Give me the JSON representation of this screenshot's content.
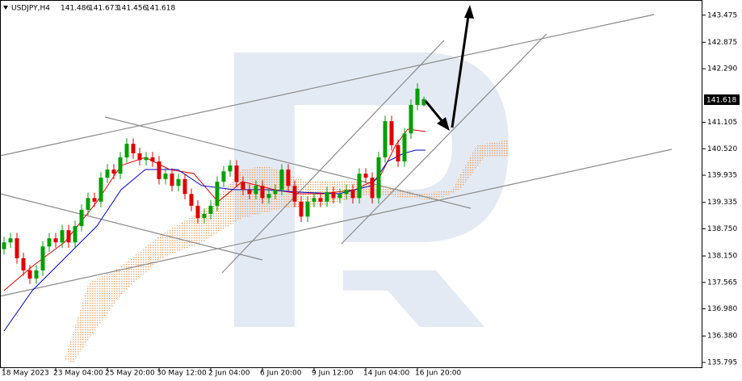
{
  "chart_data": {
    "type": "candlestick",
    "title": "USDJPY,H4",
    "ohlc": [
      141.486,
      141.673,
      141.456,
      141.618
    ],
    "categories": [
      "18 May 2023",
      null,
      null,
      null,
      null,
      null,
      null,
      null,
      "23 May 04:00",
      null,
      null,
      null,
      null,
      null,
      null,
      null,
      "25 May 20:00",
      null,
      null,
      null,
      null,
      null,
      null,
      null,
      "30 May 12:00",
      null,
      null,
      null,
      null,
      null,
      null,
      null,
      "2 Jun 04:00",
      null,
      null,
      null,
      null,
      null,
      null,
      null,
      "6 Jun 20:00",
      null,
      null,
      null,
      null,
      null,
      null,
      null,
      "9 Jun 12:00",
      null,
      null,
      null,
      null,
      null,
      null,
      null,
      "14 Jun 04:00",
      null,
      null,
      null,
      null,
      null,
      null,
      null,
      "16 Jun 20:00",
      null
    ],
    "open": [
      138.3,
      138.45,
      138.54,
      138.1,
      137.83,
      137.65,
      137.83,
      138.36,
      138.54,
      138.45,
      138.72,
      138.45,
      138.81,
      139.17,
      139.43,
      139.35,
      139.88,
      140.06,
      139.97,
      140.33,
      140.63,
      140.42,
      140.27,
      140.33,
      140.24,
      139.85,
      139.97,
      139.7,
      139.85,
      139.52,
      139.26,
      138.99,
      139.08,
      139.26,
      139.79,
      140.02,
      140.15,
      139.79,
      139.61,
      139.52,
      139.7,
      139.43,
      139.52,
      139.61,
      140.06,
      139.7,
      139.35,
      139.02,
      139.35,
      139.43,
      139.35,
      139.56,
      139.43,
      139.52,
      139.61,
      139.43,
      139.97,
      139.88,
      139.43,
      140.33,
      141.13,
      140.6,
      140.24,
      140.86,
      141.49,
      141.486
    ],
    "high": [
      138.57,
      138.66,
      138.66,
      138.22,
      137.95,
      137.95,
      138.48,
      138.66,
      138.66,
      138.84,
      138.84,
      138.93,
      139.29,
      139.55,
      139.55,
      140.0,
      140.18,
      140.18,
      140.45,
      140.75,
      140.75,
      140.54,
      140.45,
      140.45,
      140.36,
      140.09,
      140.09,
      139.97,
      139.97,
      139.64,
      139.38,
      139.2,
      139.38,
      139.91,
      140.14,
      140.27,
      140.27,
      139.91,
      139.73,
      139.82,
      139.82,
      139.64,
      139.73,
      140.18,
      140.18,
      139.82,
      139.47,
      139.47,
      139.55,
      139.55,
      139.68,
      139.68,
      139.64,
      139.73,
      139.73,
      140.09,
      140.09,
      140.0,
      140.45,
      141.25,
      141.25,
      140.72,
      140.98,
      141.61,
      141.97,
      141.673
    ],
    "low": [
      138.18,
      138.33,
      137.98,
      137.71,
      137.53,
      137.53,
      137.71,
      138.24,
      138.33,
      138.33,
      138.33,
      138.33,
      138.69,
      139.05,
      139.23,
      139.23,
      139.76,
      139.85,
      139.85,
      140.21,
      140.3,
      140.15,
      140.15,
      140.12,
      139.73,
      139.73,
      139.58,
      139.58,
      139.4,
      139.14,
      138.87,
      138.87,
      138.96,
      139.14,
      139.67,
      139.9,
      139.67,
      139.49,
      139.4,
      139.4,
      139.31,
      139.31,
      139.4,
      139.49,
      139.58,
      139.23,
      138.9,
      138.9,
      139.23,
      139.23,
      139.23,
      139.31,
      139.31,
      139.4,
      139.31,
      139.31,
      139.76,
      139.31,
      139.31,
      140.21,
      140.48,
      140.12,
      140.12,
      140.74,
      141.37,
      141.456
    ],
    "close": [
      138.45,
      138.54,
      138.1,
      137.83,
      137.65,
      137.83,
      138.36,
      138.54,
      138.45,
      138.72,
      138.45,
      138.81,
      139.17,
      139.43,
      139.35,
      139.88,
      140.06,
      139.97,
      140.33,
      140.63,
      140.42,
      140.27,
      140.33,
      140.24,
      139.85,
      139.97,
      139.7,
      139.85,
      139.52,
      139.26,
      138.99,
      139.08,
      139.26,
      139.79,
      140.02,
      140.15,
      139.79,
      139.61,
      139.52,
      139.7,
      139.43,
      139.52,
      139.61,
      140.06,
      139.7,
      139.35,
      139.02,
      139.35,
      139.43,
      139.35,
      139.56,
      139.43,
      139.52,
      139.61,
      139.43,
      139.97,
      139.88,
      139.43,
      140.33,
      141.13,
      140.6,
      140.24,
      140.86,
      141.49,
      141.85,
      141.618
    ],
    "up_color": "#00a000",
    "down_color": "#e00000",
    "ylim": [
      135.67,
      143.81
    ],
    "yticks": [
      143.475,
      142.875,
      {
        "value": 142.29,
        "label": "142.290"
      },
      141.105,
      {
        "value": 140.52,
        "label": "140.520"
      },
      139.935,
      139.335,
      {
        "value": 138.75,
        "label": "138.750"
      },
      {
        "value": 138.15,
        "label": "138.150"
      },
      137.565,
      {
        "value": 136.98,
        "label": "136.980"
      },
      {
        "value": 136.38,
        "label": "136.380"
      },
      135.795
    ]
  }
}
